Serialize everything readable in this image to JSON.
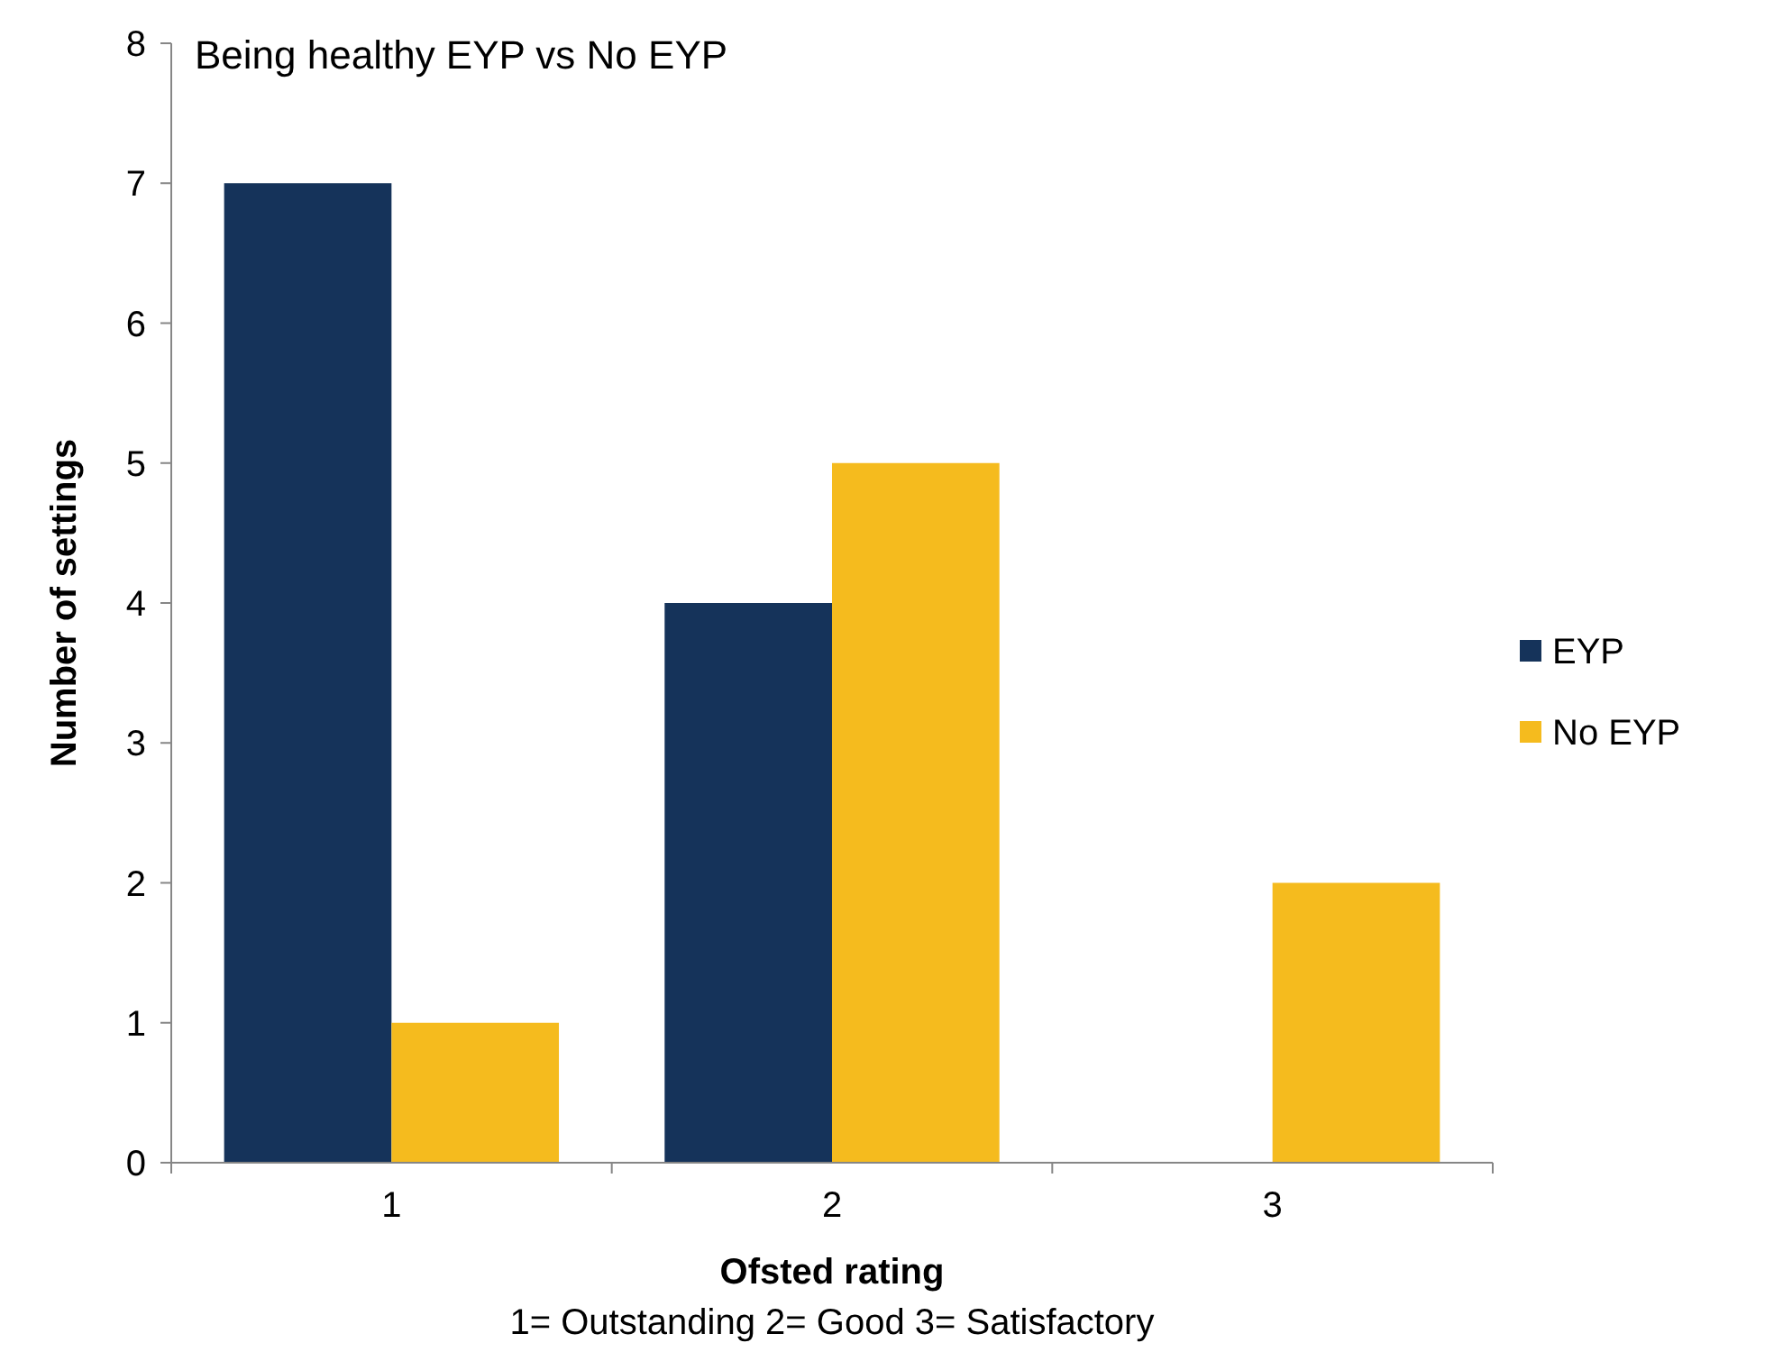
{
  "chart_data": {
    "type": "bar",
    "title": "Being healthy EYP vs No EYP",
    "xlabel": "Ofsted rating",
    "ylabel": "Number of settings",
    "categories": [
      "1",
      "2",
      "3"
    ],
    "series": [
      {
        "name": "EYP",
        "color": "#15335a",
        "values": [
          7,
          4,
          0
        ]
      },
      {
        "name": "No EYP",
        "color": "#f5bb1e",
        "values": [
          1,
          5,
          2
        ]
      }
    ],
    "ylim": [
      0,
      8
    ],
    "yticks": [
      0,
      1,
      2,
      3,
      4,
      5,
      6,
      7,
      8
    ],
    "grid": false,
    "legend": "right",
    "annotations": [
      "1= Outstanding  2= Good  3= Satisfactory"
    ]
  }
}
